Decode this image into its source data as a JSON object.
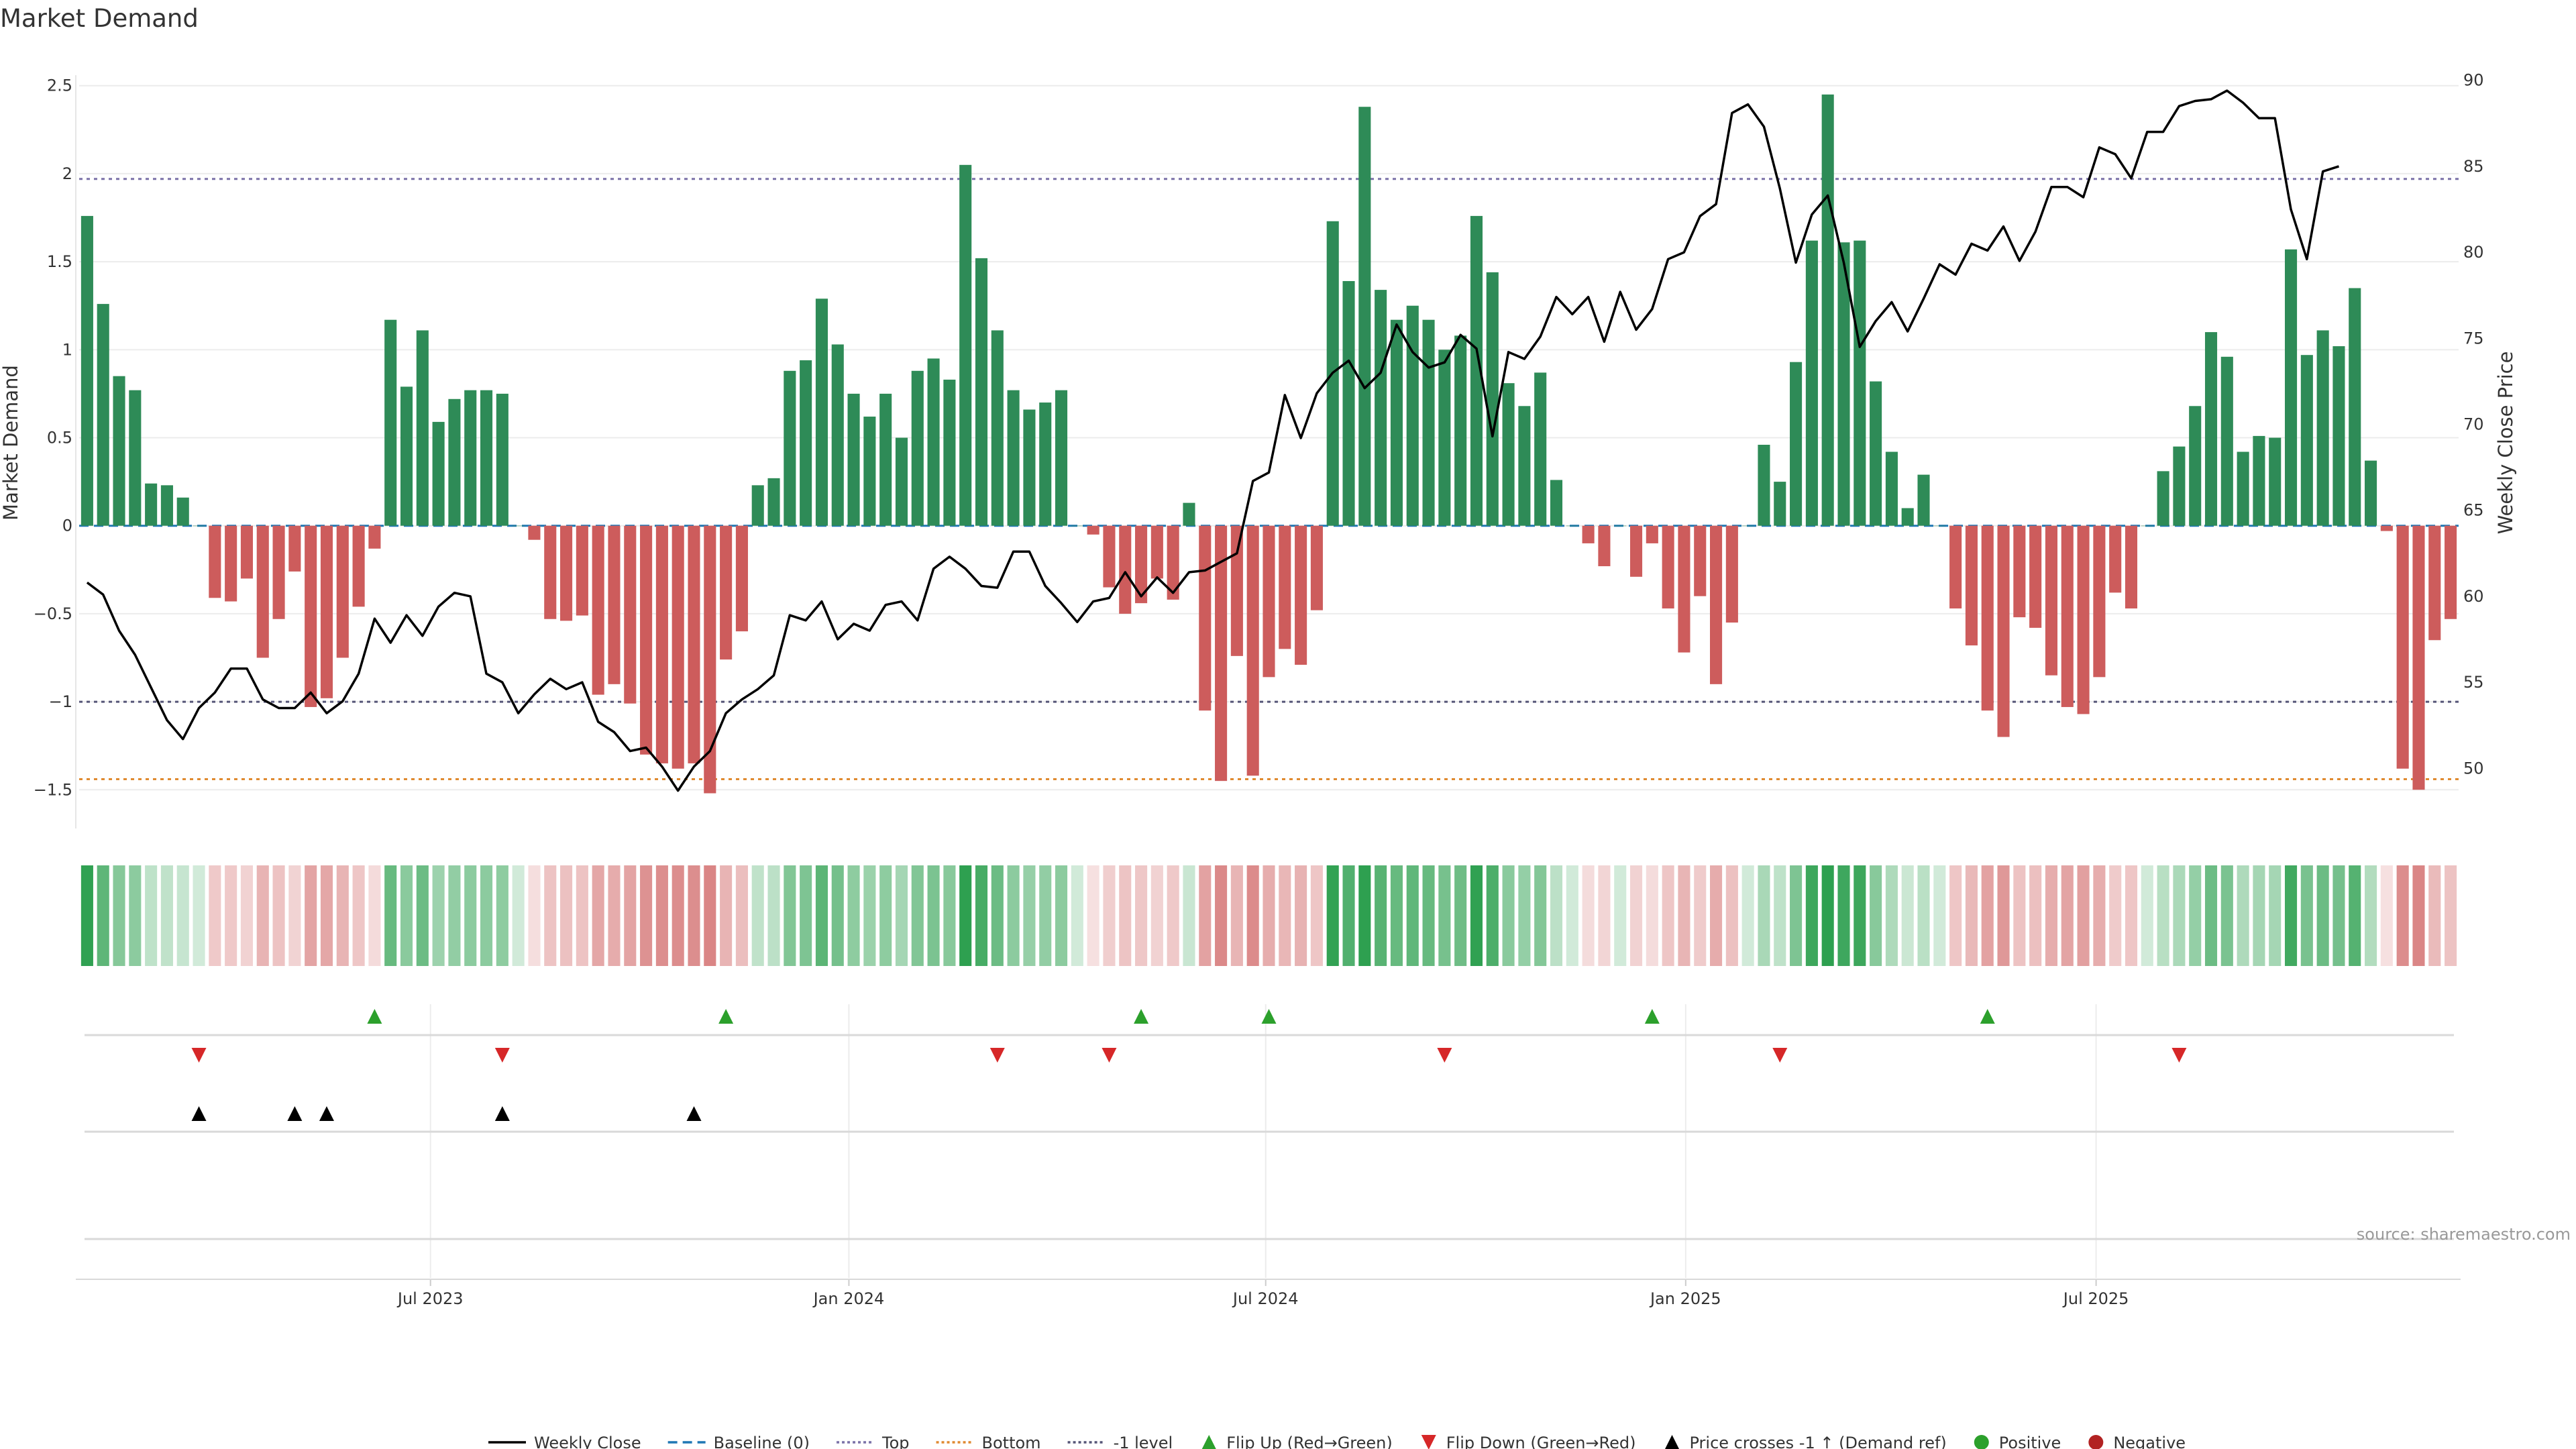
{
  "title": "Market Demand",
  "source": "source: sharemaestro.com",
  "colors": {
    "pos_bar": "#2e8b57",
    "neg_bar": "#cd5c5c",
    "close": "#000000",
    "baseline": "#1f77b4",
    "top": "#7b72a8",
    "bottom": "#e08a30",
    "minus1": "#555577",
    "flip_up": "#2ca02c",
    "flip_down": "#d62728",
    "cross": "#000000",
    "positive": "#2ca02c",
    "negative": "#b22222"
  },
  "legend": [
    {
      "label": "Weekly Close",
      "kind": "line",
      "color": "#000000",
      "dash": ""
    },
    {
      "label": "Baseline (0)",
      "kind": "line",
      "color": "#1f77b4",
      "dash": "14,8"
    },
    {
      "label": "Top",
      "kind": "line",
      "color": "#7b72a8",
      "dash": "4,4"
    },
    {
      "label": "Bottom",
      "kind": "line",
      "color": "#e08a30",
      "dash": "4,4"
    },
    {
      "label": "-1 level",
      "kind": "line",
      "color": "#555577",
      "dash": "4,4"
    },
    {
      "label": "Flip Up (Red→Green)",
      "kind": "up",
      "color": "#2ca02c"
    },
    {
      "label": "Flip Down (Green→Red)",
      "kind": "down",
      "color": "#d62728"
    },
    {
      "label": "Price crosses -1 ↑ (Demand ref)",
      "kind": "up",
      "color": "#000000"
    },
    {
      "label": "Positive",
      "kind": "dot",
      "color": "#2ca02c"
    },
    {
      "label": "Negative",
      "kind": "dot",
      "color": "#b22222"
    }
  ],
  "chart_data": {
    "type": "bar",
    "title": "Market Demand",
    "ylabel": "Market Demand",
    "y2label": "Weekly Close Price",
    "ylim": [
      -1.72,
      2.56
    ],
    "y2lim": [
      46.5,
      90.3
    ],
    "yticks": [
      2.5,
      2,
      1.5,
      1,
      0.5,
      0,
      -0.5,
      -1,
      -1.5
    ],
    "ytick_labels": [
      "2.5",
      "2",
      "1.5",
      "1",
      "0.5",
      "0",
      "−0.5",
      "−1",
      "−1.5"
    ],
    "y2ticks": [
      90,
      85,
      80,
      75,
      70,
      65,
      60,
      55,
      50
    ],
    "y2tick_labels": [
      "90",
      "85",
      "80",
      "75",
      "70",
      "65",
      "60",
      "55",
      "50"
    ],
    "levels": {
      "top": 1.97,
      "bottom": -1.44,
      "minus1": -1.0,
      "baseline": 0
    },
    "xtick_weeks": [
      21.5,
      47.7,
      73.8,
      100.1,
      125.8
    ],
    "xtick_labels": [
      "Jul 2023",
      "Jan 2024",
      "Jul 2024",
      "Jan 2025",
      "Jul 2025"
    ],
    "demand": [
      1.76,
      1.26,
      0.85,
      0.77,
      0.24,
      0.23,
      0.16,
      0.0,
      -0.41,
      -0.43,
      -0.3,
      -0.75,
      -0.53,
      -0.26,
      -1.03,
      -0.98,
      -0.75,
      -0.46,
      -0.13,
      1.17,
      0.79,
      1.11,
      0.59,
      0.72,
      0.77,
      0.77,
      0.75,
      0.0,
      -0.08,
      -0.53,
      -0.54,
      -0.51,
      -0.96,
      -0.9,
      -1.01,
      -1.3,
      -1.35,
      -1.38,
      -1.35,
      -1.52,
      -0.76,
      -0.6,
      0.23,
      0.27,
      0.88,
      0.94,
      1.29,
      1.03,
      0.75,
      0.62,
      0.75,
      0.5,
      0.88,
      0.95,
      0.83,
      2.05,
      1.52,
      1.11,
      0.77,
      0.66,
      0.7,
      0.77,
      0.0,
      -0.05,
      -0.35,
      -0.5,
      -0.44,
      -0.3,
      -0.42,
      0.13,
      -1.05,
      -1.45,
      -0.74,
      -1.42,
      -0.86,
      -0.7,
      -0.79,
      -0.48,
      1.73,
      1.39,
      2.38,
      1.34,
      1.17,
      1.25,
      1.17,
      1.0,
      1.08,
      1.76,
      1.44,
      0.81,
      0.68,
      0.87,
      0.26,
      0.0,
      -0.1,
      -0.23,
      -0.0,
      -0.29,
      -0.1,
      -0.47,
      -0.72,
      -0.4,
      -0.9,
      -0.55,
      0.0,
      0.46,
      0.25,
      0.93,
      1.62,
      2.45,
      1.61,
      1.62,
      0.82,
      0.42,
      0.1,
      0.29,
      0.0,
      -0.47,
      -0.68,
      -1.05,
      -1.2,
      -0.52,
      -0.58,
      -0.85,
      -1.03,
      -1.07,
      -0.86,
      -0.38,
      -0.47,
      0.0,
      0.31,
      0.45,
      0.68,
      1.1,
      0.96,
      0.42,
      0.51,
      0.5,
      1.57,
      0.97,
      1.11,
      1.02,
      1.35,
      0.37,
      -0.03,
      -1.38,
      -1.5,
      -0.65,
      -0.53
    ],
    "close": [
      60.8,
      60.1,
      58.0,
      56.6,
      54.7,
      52.8,
      51.7,
      53.5,
      54.4,
      55.8,
      55.8,
      54.0,
      53.5,
      53.5,
      54.4,
      53.2,
      53.9,
      55.5,
      58.7,
      57.3,
      58.9,
      57.7,
      59.4,
      60.2,
      60.0,
      55.5,
      55.0,
      53.2,
      54.3,
      55.2,
      54.6,
      55.0,
      52.7,
      52.1,
      51.0,
      51.2,
      50.1,
      48.7,
      50.1,
      51.0,
      53.2,
      54.0,
      54.6,
      55.4,
      58.9,
      58.6,
      59.7,
      57.5,
      58.4,
      58.0,
      59.5,
      59.7,
      58.6,
      61.6,
      62.3,
      61.6,
      60.6,
      60.5,
      62.6,
      62.6,
      60.6,
      59.6,
      58.5,
      59.7,
      59.9,
      61.4,
      60.0,
      61.1,
      60.2,
      61.4,
      61.5,
      62.0,
      62.5,
      66.7,
      67.2,
      71.7,
      69.2,
      71.8,
      73.0,
      73.7,
      72.1,
      73.0,
      75.8,
      74.2,
      73.3,
      73.6,
      75.2,
      74.4,
      69.3,
      74.2,
      73.8,
      75.1,
      77.4,
      76.4,
      77.4,
      74.8,
      77.7,
      75.5,
      76.7,
      79.6,
      80.0,
      82.1,
      82.8,
      88.1,
      88.6,
      87.3,
      83.7,
      79.4,
      82.2,
      83.3,
      79.4,
      74.5,
      76.0,
      77.1,
      75.4,
      77.3,
      79.3,
      78.7,
      80.5,
      80.1,
      81.5,
      79.5,
      81.2,
      83.8,
      83.8,
      83.2,
      86.1,
      85.7,
      84.3,
      87.0,
      87.0,
      88.5,
      88.8,
      88.9,
      89.4,
      88.7,
      87.8,
      87.8,
      82.5,
      79.6,
      84.7,
      85.0
    ],
    "flip_up_weeks": [
      18,
      40,
      66,
      74,
      98,
      119
    ],
    "flip_down_weeks": [
      7,
      26,
      57,
      64,
      85,
      106,
      131
    ],
    "cross_weeks": [
      7,
      13,
      15,
      26,
      38
    ]
  }
}
